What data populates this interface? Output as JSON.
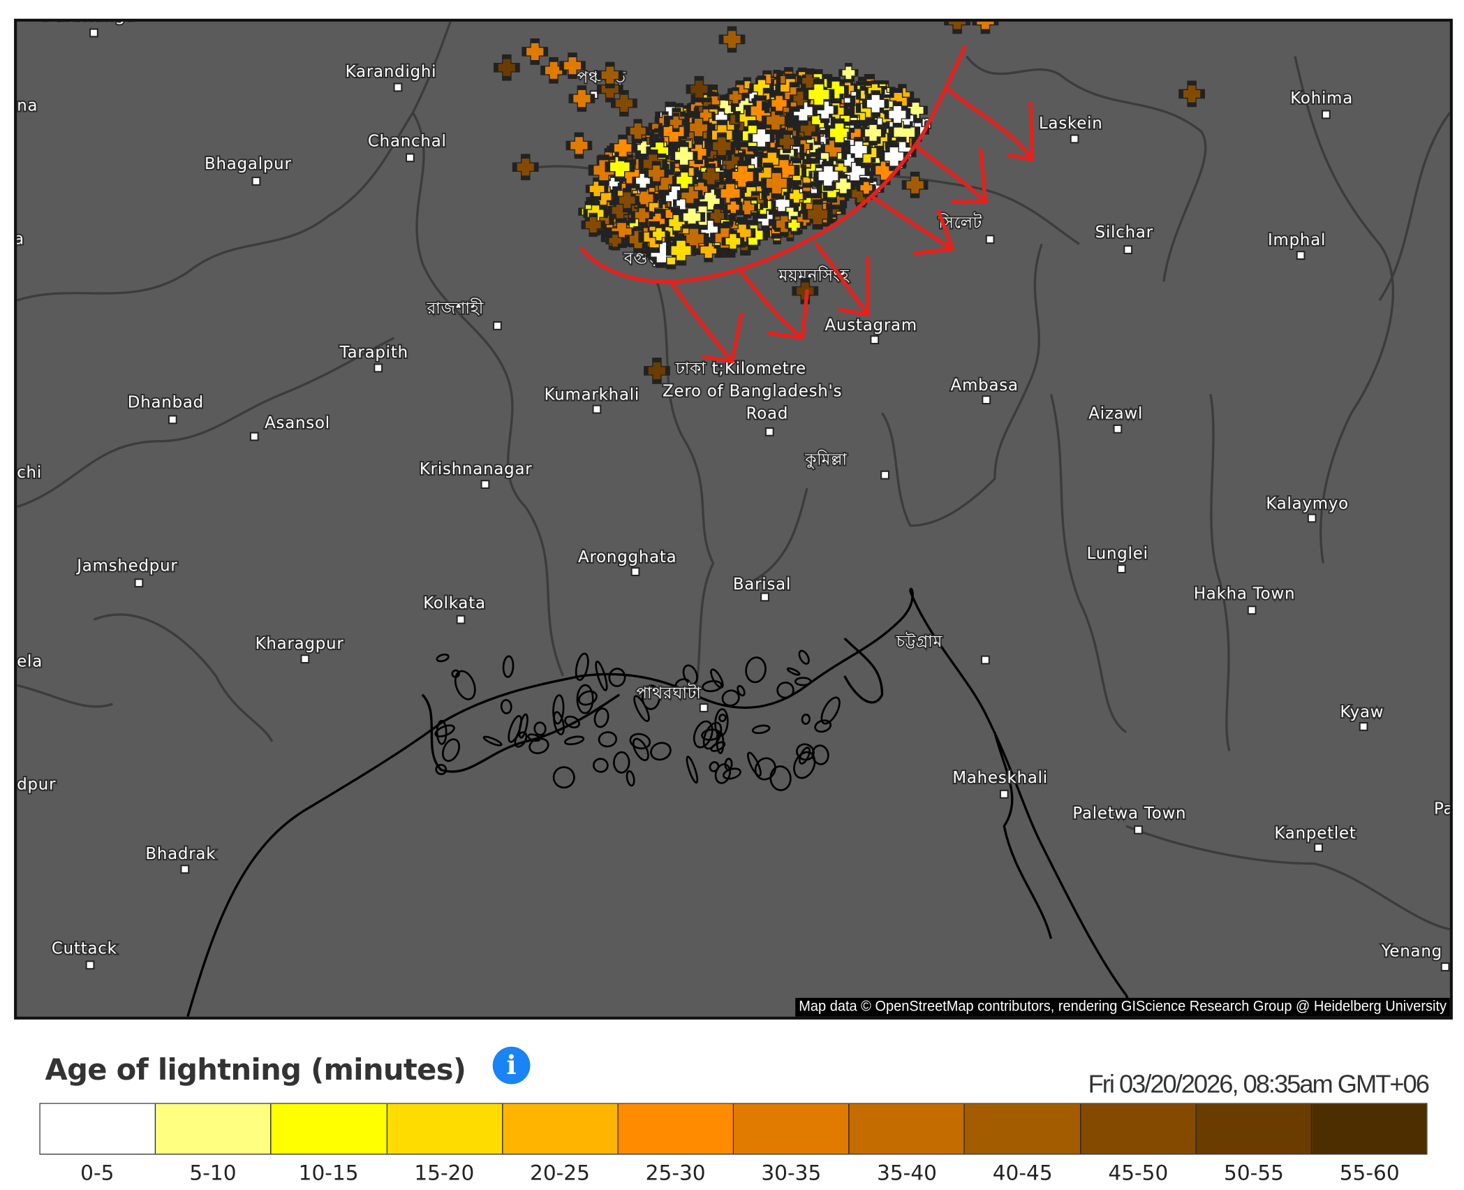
{
  "map": {
    "attribution": "Map data © OpenStreetMap contributors, rendering GIScience Research Group @ Heidelberg University",
    "places": [
      "Darbhanga",
      "Karandighi",
      "Chanchal",
      "Bhagalpur",
      "na",
      "a",
      "পঞ্চগড়",
      "বগুড়া",
      "রাজশাহী",
      "Tarapith",
      "Dhanbad",
      "Asansol",
      "chi",
      "Kumarkhali",
      "Krishnanagar",
      "Jamshedpur",
      "Kolkata",
      "Kharagpur",
      "ela",
      "Arongghata",
      "Barisal",
      "dpur",
      "Bhadrak",
      "Cuttack",
      "ঢাকা t;Kilometre",
      "Zero of Bangladesh's",
      "Road",
      "Austagram",
      "ময়মনসিংহ",
      "সিলেট",
      "uin",
      "Silchar",
      "Laskein",
      "Kohima",
      "Imphal",
      "Ambasa",
      "Aizawl",
      "কুমিল্লা",
      "Kalaymyo",
      "Lunglei",
      "Hakha Town",
      "চট্টগ্রাম",
      "পাথরঘাটা",
      "Kyaw",
      "Maheskhali",
      "Paletwa Town",
      "Kanpetlet",
      "Pa",
      "Yenang"
    ],
    "annotation_color": "#e8201c",
    "lightning_icon": "plus-cross-icon"
  },
  "legend": {
    "title": "Age of lightning (minutes)",
    "info_icon": "info-icon",
    "info_label": "i",
    "timestamp": "Fri 03/20/2026, 08:35am GMT+06",
    "bins": [
      {
        "label": "0-5",
        "color": "#ffffff"
      },
      {
        "label": "5-10",
        "color": "#ffff80"
      },
      {
        "label": "10-15",
        "color": "#ffff00"
      },
      {
        "label": "15-20",
        "color": "#ffdc00"
      },
      {
        "label": "20-25",
        "color": "#ffb400"
      },
      {
        "label": "25-30",
        "color": "#ff8c00"
      },
      {
        "label": "30-35",
        "color": "#e07b00"
      },
      {
        "label": "35-40",
        "color": "#c46c00"
      },
      {
        "label": "40-45",
        "color": "#a35d00"
      },
      {
        "label": "45-50",
        "color": "#844a00"
      },
      {
        "label": "50-55",
        "color": "#6a3c00"
      },
      {
        "label": "55-60",
        "color": "#4d2e00"
      }
    ]
  }
}
